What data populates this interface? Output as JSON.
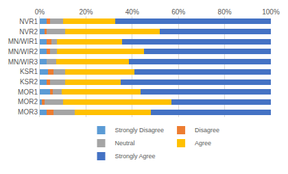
{
  "chart_data": {
    "type": "bar",
    "orientation": "horizontal",
    "stacked": true,
    "grid": true,
    "legend": "bottom",
    "categories": [
      "NVR1",
      "NVR2",
      "MN/WIR1",
      "MN/WIR2",
      "MN/WIR3",
      "KSR1",
      "KSR2",
      "MOR1",
      "MOR2",
      "MOR3"
    ],
    "series": [
      {
        "name": "Strongly Disagree",
        "color": "#5B9BD5",
        "values": [
          3,
          2,
          3,
          3,
          3,
          3.5,
          3,
          4.5,
          1,
          3
        ]
      },
      {
        "name": "Disagree",
        "color": "#ED7D31",
        "values": [
          1.5,
          1,
          2,
          1.5,
          0,
          2.5,
          1.5,
          1,
          1,
          3
        ]
      },
      {
        "name": "Neutral",
        "color": "#A5A5A5",
        "values": [
          5.5,
          8,
          2.5,
          3,
          4,
          5,
          6.5,
          4,
          8,
          9
        ]
      },
      {
        "name": "Agree",
        "color": "#FFC000",
        "values": [
          22.5,
          41,
          28,
          37.5,
          31.5,
          30,
          24,
          34,
          47,
          33
        ]
      },
      {
        "name": "Strongly Agree",
        "color": "#4472C4",
        "values": [
          67.5,
          48,
          64.5,
          55,
          61.5,
          59,
          65,
          56.5,
          43,
          52
        ]
      }
    ],
    "xlim": [
      0,
      100
    ],
    "xticks": [
      {
        "value": 0,
        "label": "0%"
      },
      {
        "value": 20,
        "label": "20%"
      },
      {
        "value": 40,
        "label": "40%"
      },
      {
        "value": 60,
        "label": "60%"
      },
      {
        "value": 80,
        "label": "80%"
      },
      {
        "value": 100,
        "label": "100%"
      }
    ]
  }
}
